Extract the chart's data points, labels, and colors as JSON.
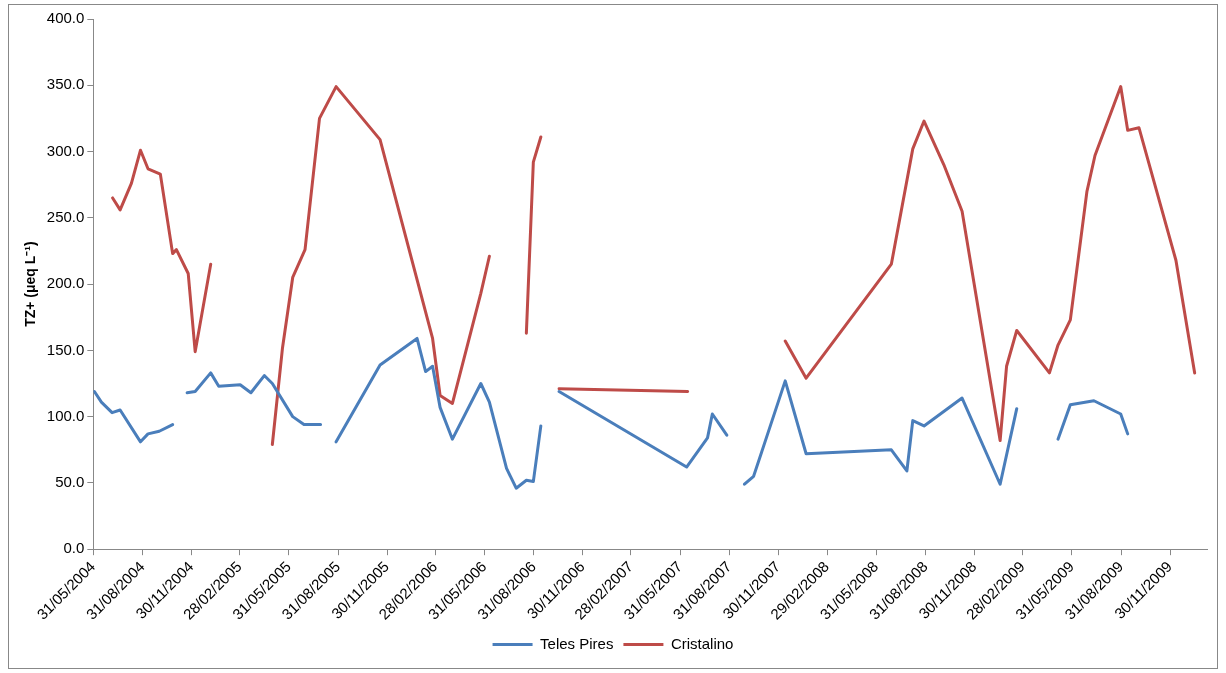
{
  "chart_data": {
    "type": "line",
    "ylabel": "TZ+ (μeq L⁻¹)",
    "xlim": [
      "2004-05-31",
      "2010-02-07"
    ],
    "ylim": [
      0,
      400
    ],
    "yticks": [
      {
        "value": 0,
        "label": "0.0"
      },
      {
        "value": 50,
        "label": "50.0"
      },
      {
        "value": 100,
        "label": "100.0"
      },
      {
        "value": 150,
        "label": "150.0"
      },
      {
        "value": 200,
        "label": "200.0"
      },
      {
        "value": 250,
        "label": "250.0"
      },
      {
        "value": 300,
        "label": "300.0"
      },
      {
        "value": 350,
        "label": "350.0"
      },
      {
        "value": 400,
        "label": "400.0"
      }
    ],
    "xticks": [
      {
        "value": "2004-05-31",
        "label": "31/05/2004"
      },
      {
        "value": "2004-08-31",
        "label": "31/08/2004"
      },
      {
        "value": "2004-11-30",
        "label": "30/11/2004"
      },
      {
        "value": "2005-02-28",
        "label": "28/02/2005"
      },
      {
        "value": "2005-05-31",
        "label": "31/05/2005"
      },
      {
        "value": "2005-08-31",
        "label": "31/08/2005"
      },
      {
        "value": "2005-11-30",
        "label": "30/11/2005"
      },
      {
        "value": "2006-02-28",
        "label": "28/02/2006"
      },
      {
        "value": "2006-05-31",
        "label": "31/05/2006"
      },
      {
        "value": "2006-08-31",
        "label": "31/08/2006"
      },
      {
        "value": "2006-11-30",
        "label": "30/11/2006"
      },
      {
        "value": "2007-02-28",
        "label": "28/02/2007"
      },
      {
        "value": "2007-05-31",
        "label": "31/05/2007"
      },
      {
        "value": "2007-08-31",
        "label": "31/08/2007"
      },
      {
        "value": "2007-11-30",
        "label": "30/11/2007"
      },
      {
        "value": "2008-02-29",
        "label": "29/02/2008"
      },
      {
        "value": "2008-05-31",
        "label": "31/05/2008"
      },
      {
        "value": "2008-08-31",
        "label": "31/08/2008"
      },
      {
        "value": "2008-11-30",
        "label": "30/11/2008"
      },
      {
        "value": "2009-02-28",
        "label": "28/02/2009"
      },
      {
        "value": "2009-05-31",
        "label": "31/05/2009"
      },
      {
        "value": "2009-08-31",
        "label": "31/08/2009"
      },
      {
        "value": "2009-11-30",
        "label": "30/11/2009"
      }
    ],
    "grid": false,
    "legend": "bottom",
    "marker": "none",
    "line_style": "solid",
    "series": [
      {
        "name": "Teles Pires",
        "color": "#4a7ebb",
        "x": [
          "2004-06-02",
          "2004-06-15",
          "2004-07-05",
          "2004-07-20",
          "2004-08-27",
          "2004-09-10",
          "2004-10-01",
          "2004-10-26",
          "2004-11-10",
          "2004-11-22",
          "2004-12-07",
          "2005-01-05",
          "2005-01-20",
          "2005-03-01",
          "2005-03-21",
          "2005-04-15",
          "2005-04-30",
          "2005-06-07",
          "2005-06-28",
          "2005-07-29",
          "2005-08-12",
          "2005-08-27",
          "2005-11-17",
          "2006-01-25",
          "2006-02-10",
          "2006-02-23",
          "2006-03-09",
          "2006-04-01",
          "2006-05-24",
          "2006-06-09",
          "2006-07-11",
          "2006-07-29",
          "2006-08-17",
          "2006-08-30",
          "2006-09-13",
          "2006-09-30",
          "2006-10-17",
          "2007-06-12",
          "2007-07-21",
          "2007-07-30",
          "2007-08-26",
          "2007-09-12",
          "2007-09-28",
          "2007-10-15",
          "2007-12-13",
          "2008-01-21",
          "2008-06-28",
          "2008-07-27",
          "2008-08-07",
          "2008-08-28",
          "2008-11-07",
          "2009-01-17",
          "2009-02-17",
          "2009-04-01",
          "2009-05-05",
          "2009-05-28",
          "2009-07-11",
          "2009-08-30",
          "2009-09-12"
        ],
        "values": [
          119,
          111,
          103,
          105,
          81,
          87,
          89,
          94,
          null,
          118,
          119,
          133,
          123,
          124,
          118,
          131,
          125,
          100,
          94,
          94,
          null,
          81,
          139,
          159,
          134,
          138,
          107,
          83,
          125,
          111,
          61,
          46,
          52,
          51,
          93,
          null,
          119,
          62,
          84,
          102,
          86,
          null,
          49,
          55,
          127,
          72,
          75,
          59,
          97,
          93,
          114,
          49,
          106,
          null,
          83,
          109,
          112,
          102,
          87
        ]
      },
      {
        "name": "Cristalino",
        "color": "#be4b48",
        "x": [
          "2004-07-06",
          "2004-07-20",
          "2004-08-10",
          "2004-08-27",
          "2004-09-10",
          "2004-10-03",
          "2004-10-26",
          "2004-11-02",
          "2004-11-24",
          "2004-12-07",
          "2005-01-05",
          "2005-03-01",
          "2005-04-30",
          "2005-05-19",
          "2005-06-07",
          "2005-06-30",
          "2005-07-27",
          "2005-08-27",
          "2005-11-17",
          "2006-02-23",
          "2006-03-09",
          "2006-04-01",
          "2006-05-24",
          "2006-06-09",
          "2006-07-20",
          "2006-08-17",
          "2006-08-30",
          "2006-09-13",
          "2006-10-01",
          "2006-10-17",
          "2007-06-14",
          "2007-09-30",
          "2007-12-13",
          "2008-01-21",
          "2008-06-28",
          "2008-08-07",
          "2008-08-28",
          "2008-10-04",
          "2008-11-07",
          "2009-01-17",
          "2009-01-29",
          "2009-02-17",
          "2009-04-19",
          "2009-05-05",
          "2009-05-28",
          "2009-06-28",
          "2009-07-13",
          "2009-08-30",
          "2009-09-12",
          "2009-10-03",
          "2009-12-11",
          "2010-01-15"
        ],
        "values": [
          265,
          256,
          276,
          301,
          287,
          283,
          223,
          226,
          208,
          149,
          215,
          null,
          79,
          152,
          205,
          226,
          325,
          349,
          309,
          159,
          116,
          110,
          193,
          221,
          null,
          163,
          292,
          311,
          null,
          121,
          119,
          null,
          157,
          129,
          215,
          302,
          323,
          290,
          255,
          82,
          138,
          165,
          133,
          154,
          173,
          270,
          297,
          349,
          316,
          318,
          218,
          133
        ]
      }
    ]
  }
}
